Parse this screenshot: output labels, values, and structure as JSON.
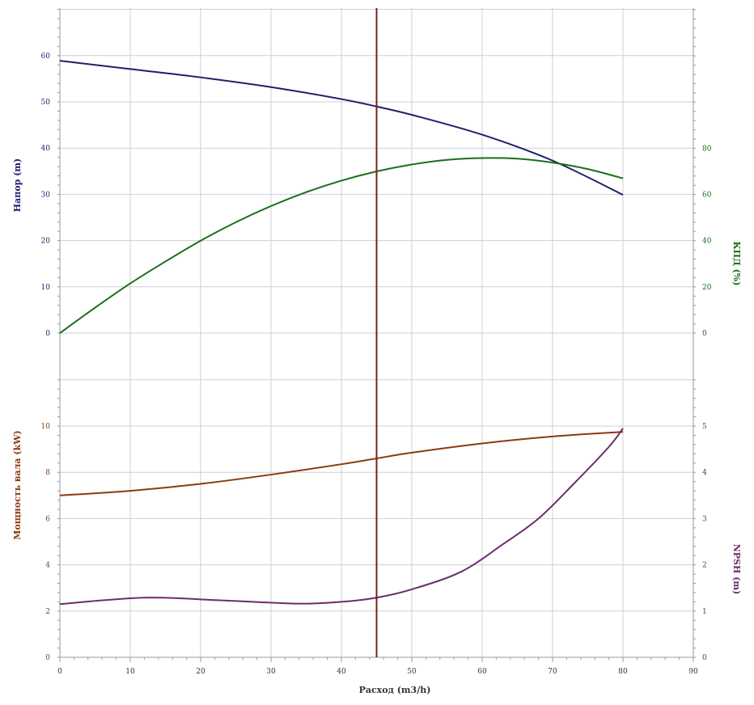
{
  "colors": {
    "head": "#1f1f6e",
    "efficiency": "#1a6e1a",
    "power": "#8b3a0f",
    "npsh": "#6b2d6b",
    "duty_line": "#7a1f1f",
    "grid": "#cfcfcf",
    "axis": "#999999",
    "xlabel": "#333333"
  },
  "chart_data": {
    "type": "line",
    "xlabel": "Расход (m3/h)",
    "xlim": [
      0,
      90
    ],
    "x_ticks": [
      0,
      10,
      20,
      30,
      40,
      50,
      60,
      70,
      80,
      90
    ],
    "duty_point_x": 45,
    "top_panel": {
      "left_axis": {
        "label": "Напор (m)",
        "ticks": [
          0,
          10,
          20,
          30,
          40,
          50,
          60
        ]
      },
      "right_axis": {
        "label": "КПД (%)",
        "ticks": [
          0,
          20,
          40,
          60,
          80
        ]
      },
      "series": [
        {
          "key": "head",
          "axis": "left",
          "x": [
            0,
            10,
            20,
            30,
            40,
            45,
            50,
            60,
            70,
            80
          ],
          "y": [
            58.9,
            57.1,
            55.3,
            53.2,
            50.6,
            49.0,
            47.2,
            42.9,
            37.3,
            29.9
          ]
        },
        {
          "key": "efficiency",
          "axis": "right",
          "x": [
            0,
            5,
            10,
            15,
            20,
            25,
            30,
            35,
            40,
            45,
            50,
            55,
            60,
            65,
            70,
            75,
            80
          ],
          "y": [
            0,
            11,
            21.5,
            31,
            40,
            48,
            55,
            61,
            66,
            70,
            73,
            75,
            75.8,
            75.5,
            73.8,
            71,
            67
          ]
        }
      ]
    },
    "bottom_panel": {
      "left_axis": {
        "label": "Мощность вала (kW)",
        "ticks": [
          0,
          2,
          4,
          6,
          8,
          10
        ]
      },
      "right_axis": {
        "label": "NPSH (m)",
        "ticks": [
          0,
          1,
          2,
          3,
          4,
          5
        ]
      },
      "series": [
        {
          "key": "power",
          "axis": "left",
          "x": [
            0,
            10,
            20,
            30,
            40,
            45,
            50,
            60,
            70,
            80
          ],
          "y": [
            7.0,
            7.2,
            7.5,
            7.9,
            8.35,
            8.6,
            8.85,
            9.25,
            9.55,
            9.75
          ]
        },
        {
          "key": "npsh",
          "axis": "right",
          "x": [
            0,
            12,
            23,
            34,
            40,
            45,
            50,
            57,
            63,
            68,
            73,
            78,
            80
          ],
          "y": [
            1.15,
            1.29,
            1.23,
            1.16,
            1.2,
            1.29,
            1.47,
            1.85,
            2.45,
            3.0,
            3.75,
            4.55,
            4.95
          ]
        }
      ]
    }
  }
}
